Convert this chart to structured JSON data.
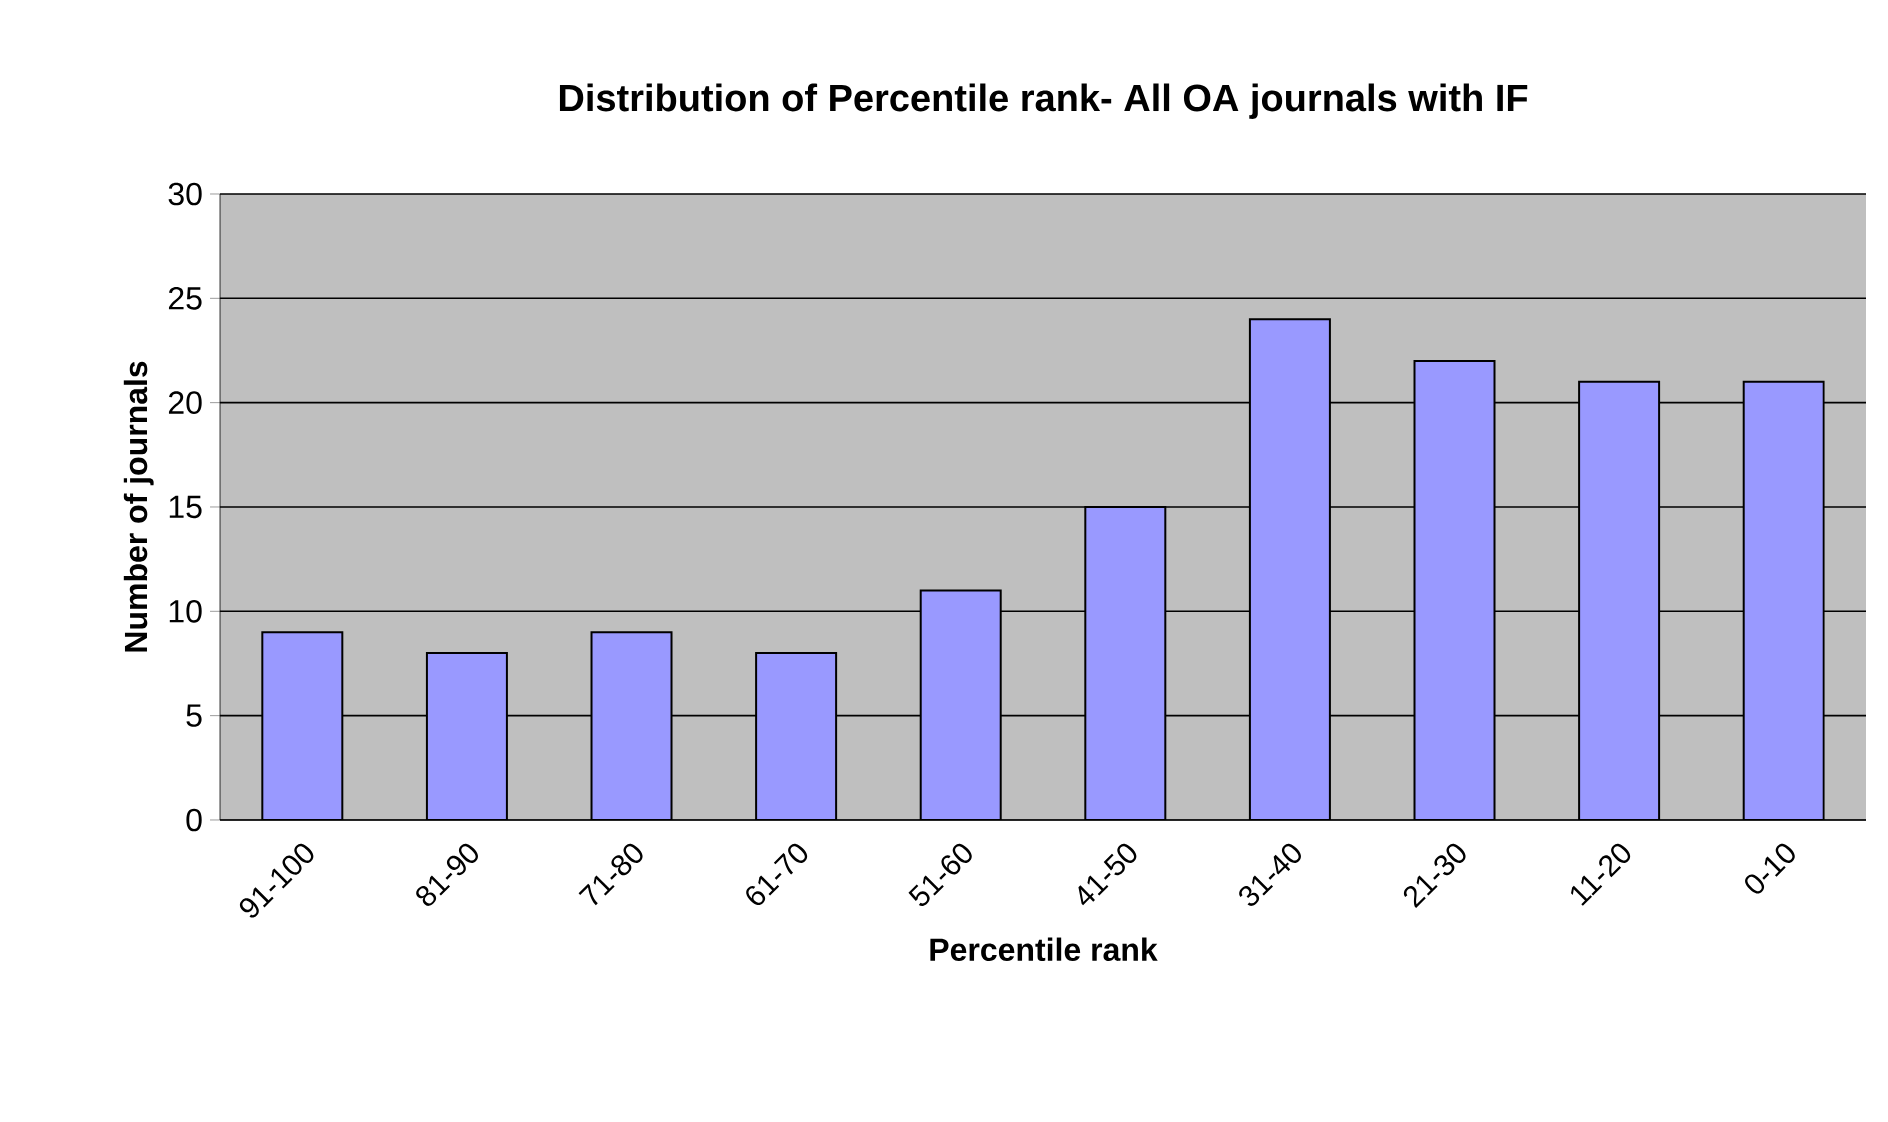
{
  "chart_data": {
    "type": "bar",
    "title": "Distribution of Percentile rank- All OA journals with IF",
    "xlabel": "Percentile rank",
    "ylabel": "Number of journals",
    "categories": [
      "91-100",
      "81-90",
      "71-80",
      "61-70",
      "51-60",
      "41-50",
      "31-40",
      "21-30",
      "11-20",
      "0-10"
    ],
    "values": [
      9,
      8,
      9,
      8,
      11,
      15,
      24,
      22,
      21,
      21
    ],
    "color": "#9999ff",
    "ylim": [
      0,
      30
    ],
    "yticks": [
      0,
      5,
      10,
      15,
      20,
      25,
      30
    ],
    "grid": "y"
  }
}
